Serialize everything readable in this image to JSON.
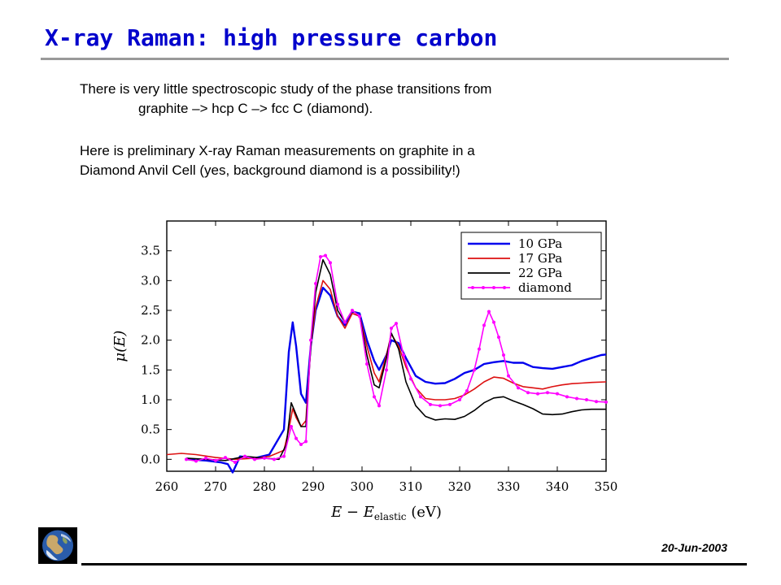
{
  "slide": {
    "title": "X-ray Raman: high pressure carbon",
    "para1_line1": "There is very little spectroscopic study of the phase transitions from",
    "para1_line2": "graphite –> hcp C –> fcc C (diamond).",
    "para2_line1": "Here is preliminary X-ray Raman measurements on graphite in a",
    "para2_line2": "Diamond Anvil Cell (yes, background diamond is a possibility!)",
    "date": "20-Jun-2003",
    "logo_icon": "earth-globe-icon"
  },
  "chart_data": {
    "type": "line",
    "title": "",
    "xlabel_main": "E − E",
    "xlabel_sub": "elastic",
    "xlabel_unit": " (eV)",
    "ylabel": "μ(E)",
    "xlim": [
      260,
      350
    ],
    "ylim": [
      -0.2,
      4.0
    ],
    "xticks": [
      "260",
      "270",
      "280",
      "290",
      "300",
      "310",
      "320",
      "330",
      "340",
      "350"
    ],
    "yticks": [
      "0.0",
      "0.5",
      "1.0",
      "1.5",
      "2.0",
      "2.5",
      "3.0",
      "3.5"
    ],
    "legend_position": "top-right",
    "series": [
      {
        "name": "10 GPa",
        "color": "#0000ee",
        "x": [
          264,
          268,
          271,
          272.5,
          273.5,
          275,
          278,
          281,
          284,
          285,
          285.8,
          286.5,
          287.5,
          288.5,
          289.5,
          290.5,
          292,
          293.5,
          295,
          296.5,
          298,
          299.5,
          301,
          302.5,
          303.5,
          305,
          306,
          307.5,
          309,
          311,
          313,
          315,
          317,
          319,
          321,
          323,
          325,
          327,
          329,
          331,
          333,
          335,
          337,
          339,
          341,
          343,
          345,
          347,
          349,
          350
        ],
        "y": [
          0.0,
          -0.02,
          -0.05,
          -0.08,
          -0.22,
          0.05,
          0.02,
          0.08,
          0.5,
          1.8,
          2.3,
          1.9,
          1.1,
          0.95,
          1.9,
          2.5,
          2.88,
          2.75,
          2.4,
          2.25,
          2.48,
          2.45,
          2.0,
          1.65,
          1.5,
          1.75,
          2.0,
          1.95,
          1.7,
          1.4,
          1.3,
          1.27,
          1.28,
          1.35,
          1.45,
          1.5,
          1.6,
          1.63,
          1.65,
          1.62,
          1.62,
          1.55,
          1.53,
          1.52,
          1.55,
          1.58,
          1.65,
          1.7,
          1.75,
          1.76
        ]
      },
      {
        "name": "17 GPa",
        "color": "#dd1111",
        "x": [
          260,
          263,
          266,
          270,
          274,
          278,
          281,
          284,
          285,
          285.8,
          286.5,
          287.5,
          288.5,
          289.5,
          290.5,
          292,
          293.5,
          295,
          296.5,
          298,
          299.5,
          301,
          302.5,
          303.5,
          305,
          306,
          307.5,
          309,
          311,
          313,
          315,
          317,
          319,
          321,
          323,
          325,
          327,
          329,
          331,
          333,
          335,
          337,
          339,
          341,
          343,
          345,
          347,
          350
        ],
        "y": [
          0.08,
          0.1,
          0.08,
          0.03,
          0.0,
          0.02,
          0.05,
          0.15,
          0.5,
          0.85,
          0.7,
          0.55,
          0.65,
          1.9,
          2.55,
          3.0,
          2.85,
          2.4,
          2.2,
          2.45,
          2.4,
          1.9,
          1.45,
          1.3,
          1.75,
          2.1,
          1.9,
          1.55,
          1.2,
          1.02,
          1.0,
          1.0,
          1.02,
          1.08,
          1.18,
          1.3,
          1.38,
          1.36,
          1.28,
          1.22,
          1.2,
          1.18,
          1.22,
          1.25,
          1.27,
          1.28,
          1.29,
          1.3
        ]
      },
      {
        "name": "22 GPa",
        "color": "#000000",
        "x": [
          264,
          268,
          272,
          276,
          280,
          283,
          284.5,
          285.5,
          286.5,
          287.5,
          288.5,
          289.5,
          290.5,
          292,
          293.5,
          295,
          296.5,
          298,
          299.5,
          301,
          302.5,
          303.5,
          305,
          306,
          307.5,
          309,
          311,
          313,
          315,
          317,
          319,
          321,
          323,
          325,
          327,
          329,
          331,
          333,
          335,
          337,
          339,
          341,
          343,
          345,
          347,
          350
        ],
        "y": [
          0.02,
          0.0,
          -0.02,
          0.05,
          0.02,
          0.0,
          0.25,
          0.95,
          0.75,
          0.55,
          0.55,
          1.9,
          2.8,
          3.35,
          3.1,
          2.5,
          2.3,
          2.5,
          2.4,
          1.75,
          1.25,
          1.2,
          1.7,
          2.12,
          1.85,
          1.3,
          0.9,
          0.72,
          0.66,
          0.68,
          0.67,
          0.72,
          0.82,
          0.95,
          1.03,
          1.05,
          0.98,
          0.92,
          0.85,
          0.76,
          0.75,
          0.76,
          0.8,
          0.83,
          0.84,
          0.84
        ]
      },
      {
        "name": "diamond",
        "color": "#ff00ff",
        "x": [
          264,
          266,
          268,
          270,
          272,
          274,
          276,
          278,
          280,
          282,
          284,
          285.5,
          286.5,
          287.5,
          288.5,
          289.5,
          290.5,
          291.5,
          292.5,
          293.5,
          295,
          296.5,
          298,
          299.5,
          301,
          302.5,
          303.5,
          305,
          306,
          307,
          308.5,
          310,
          312,
          314,
          316,
          318,
          320,
          321.5,
          323,
          324,
          325,
          326,
          327,
          328,
          329,
          330,
          332,
          334,
          336,
          338,
          340,
          342,
          344,
          346,
          348,
          350
        ],
        "y": [
          0.0,
          -0.03,
          0.02,
          -0.02,
          0.03,
          -0.05,
          0.05,
          0.0,
          0.02,
          0.0,
          0.05,
          0.55,
          0.35,
          0.25,
          0.3,
          2.0,
          2.95,
          3.4,
          3.42,
          3.3,
          2.6,
          2.3,
          2.5,
          2.4,
          1.6,
          1.05,
          0.9,
          1.5,
          2.2,
          2.28,
          1.75,
          1.35,
          1.05,
          0.92,
          0.9,
          0.92,
          1.0,
          1.15,
          1.5,
          1.85,
          2.25,
          2.48,
          2.3,
          2.05,
          1.75,
          1.4,
          1.2,
          1.12,
          1.1,
          1.12,
          1.1,
          1.05,
          1.02,
          1.0,
          0.97,
          0.96
        ]
      }
    ]
  }
}
